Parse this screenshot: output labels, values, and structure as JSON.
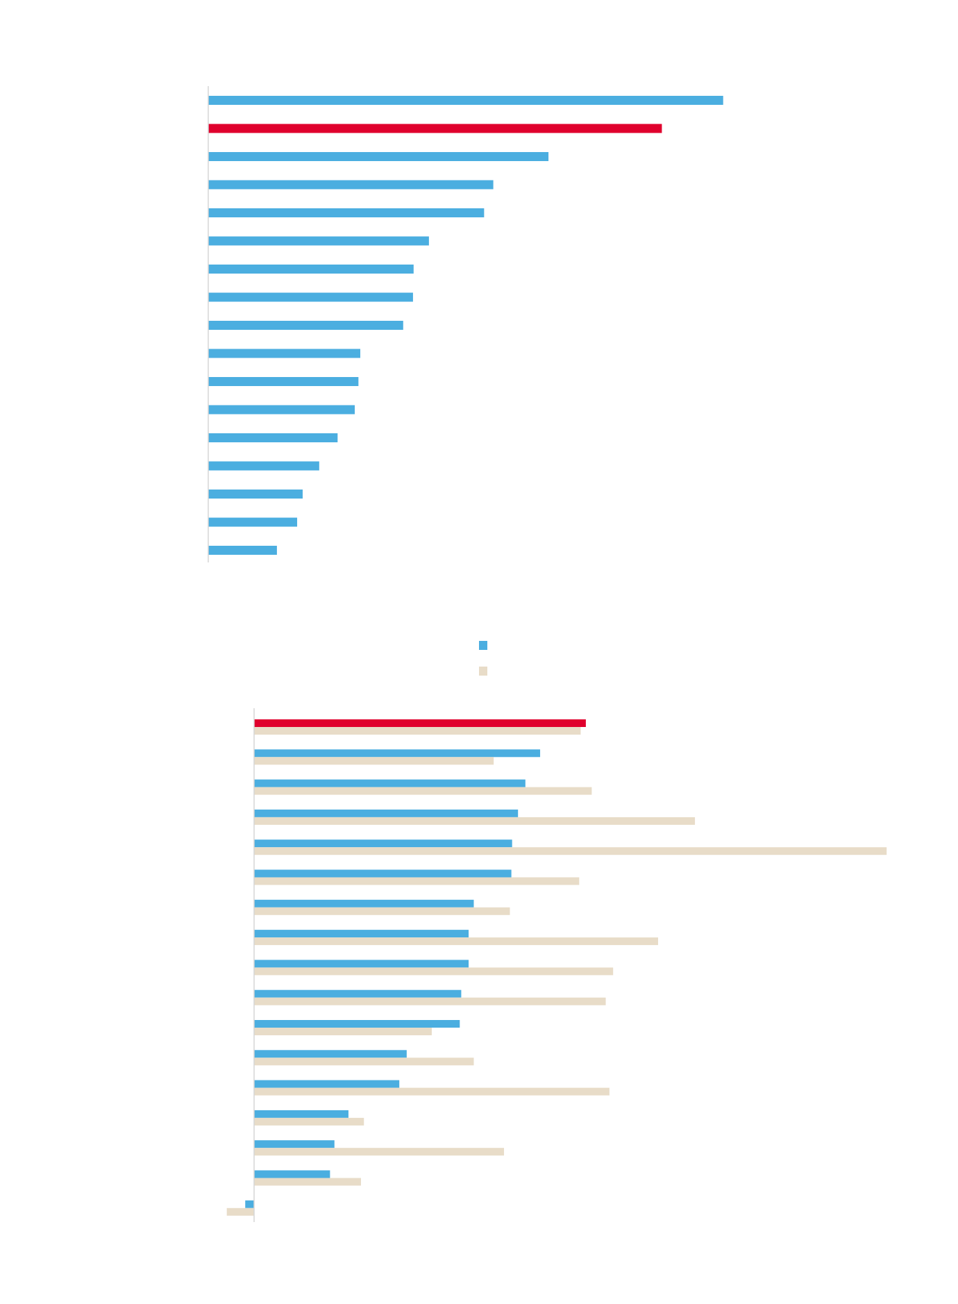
{
  "colors": {
    "primary": "#4baee0",
    "highlight": "#e0002d",
    "secondary": "#e8dcc8",
    "axis": "#d6d6d6"
  },
  "chart_data": [
    {
      "type": "bar",
      "orientation": "horizontal",
      "title": "",
      "categories": [
        "",
        "",
        "",
        "",
        "",
        "",
        "",
        "",
        "",
        "",
        "",
        "",
        "",
        "",
        "",
        "",
        ""
      ],
      "values": [
        8.4,
        7.4,
        5.55,
        4.65,
        4.5,
        3.6,
        3.35,
        3.34,
        3.18,
        2.48,
        2.45,
        2.39,
        2.11,
        1.81,
        1.54,
        1.45,
        1.12
      ],
      "highlight_index": 1,
      "xlim": [
        0,
        10
      ],
      "grid": false
    },
    {
      "type": "bar",
      "orientation": "horizontal",
      "title": "",
      "categories": [
        "",
        "",
        "",
        "",
        "",
        "",
        "",
        "",
        "",
        "",
        "",
        "",
        "",
        "",
        "",
        "",
        ""
      ],
      "series": [
        {
          "name": "",
          "values": [
            4.5,
            3.88,
            3.68,
            3.58,
            3.5,
            3.49,
            2.98,
            2.91,
            2.91,
            2.81,
            2.79,
            2.07,
            1.97,
            1.28,
            1.09,
            1.03,
            -0.12
          ]
        },
        {
          "name": "",
          "values": [
            4.43,
            3.25,
            4.58,
            5.98,
            8.58,
            4.41,
            3.47,
            5.48,
            4.87,
            4.77,
            2.41,
            2.98,
            4.82,
            1.49,
            3.39,
            1.45,
            -0.37
          ]
        }
      ],
      "highlight_index": 0,
      "xlim": [
        -0.5,
        9
      ],
      "legend": "top-center",
      "grid": false
    }
  ]
}
